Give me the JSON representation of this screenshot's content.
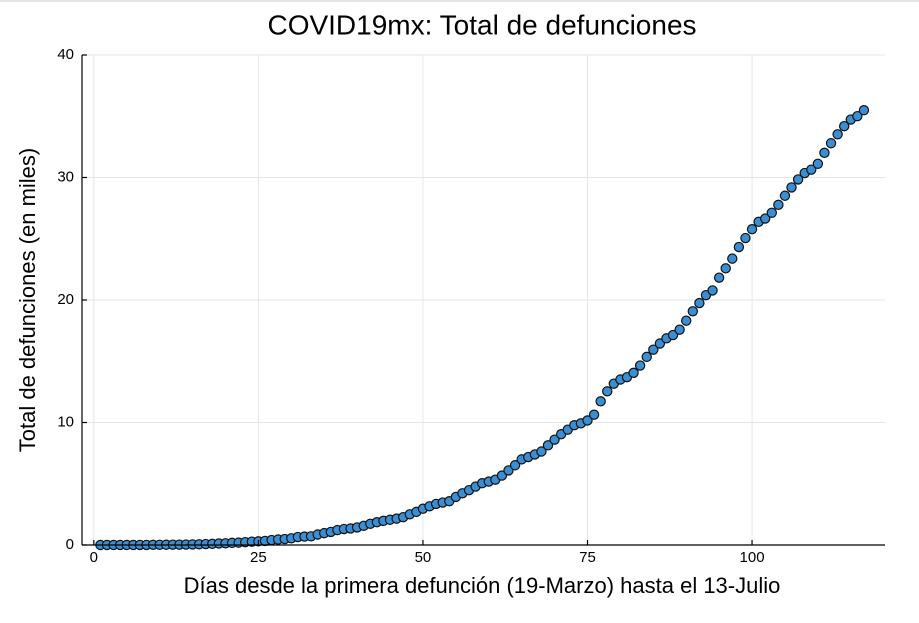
{
  "chart_data": {
    "type": "scatter",
    "title": "COVID19mx: Total de defunciones",
    "x_label": "Días desde la primera defunción (19-Marzo) hasta el 13-Julio",
    "y_label": "Total de defunciones (en miles)",
    "x": [
      1,
      2,
      3,
      4,
      5,
      6,
      7,
      8,
      9,
      10,
      11,
      12,
      13,
      14,
      15,
      16,
      17,
      18,
      19,
      20,
      21,
      22,
      23,
      24,
      25,
      26,
      27,
      28,
      29,
      30,
      31,
      32,
      33,
      34,
      35,
      36,
      37,
      38,
      39,
      40,
      41,
      42,
      43,
      44,
      45,
      46,
      47,
      48,
      49,
      50,
      51,
      52,
      53,
      54,
      55,
      56,
      57,
      58,
      59,
      60,
      61,
      62,
      63,
      64,
      65,
      66,
      67,
      68,
      69,
      70,
      71,
      72,
      73,
      74,
      75,
      76,
      77,
      78,
      79,
      80,
      81,
      82,
      83,
      84,
      85,
      86,
      87,
      88,
      89,
      90,
      91,
      92,
      93,
      94,
      95,
      96,
      97,
      98,
      99,
      100,
      101,
      102,
      103,
      104,
      105,
      106,
      107,
      108,
      109,
      110,
      111,
      112,
      113,
      114,
      115,
      116,
      117
    ],
    "values": [
      0.001,
      0.002,
      0.002,
      0.002,
      0.004,
      0.005,
      0.006,
      0.008,
      0.012,
      0.016,
      0.02,
      0.028,
      0.029,
      0.037,
      0.05,
      0.06,
      0.079,
      0.094,
      0.125,
      0.141,
      0.174,
      0.194,
      0.233,
      0.273,
      0.296,
      0.332,
      0.406,
      0.449,
      0.486,
      0.546,
      0.65,
      0.686,
      0.712,
      0.857,
      0.97,
      1.069,
      1.221,
      1.305,
      1.351,
      1.434,
      1.569,
      1.732,
      1.859,
      1.972,
      2.061,
      2.154,
      2.271,
      2.507,
      2.704,
      2.961,
      3.16,
      3.353,
      3.465,
      3.573,
      3.926,
      4.22,
      4.477,
      4.767,
      5.045,
      5.177,
      5.332,
      5.666,
      6.09,
      6.51,
      6.989,
      7.179,
      7.394,
      7.633,
      8.134,
      8.597,
      9.044,
      9.415,
      9.779,
      9.93,
      10.167,
      10.637,
      11.729,
      12.545,
      13.17,
      13.511,
      13.699,
      14.053,
      14.649,
      15.357,
      15.944,
      16.448,
      16.872,
      17.141,
      17.58,
      18.31,
      19.08,
      19.747,
      20.394,
      20.781,
      21.825,
      22.584,
      23.377,
      24.324,
      25.06,
      25.779,
      26.381,
      26.648,
      27.121,
      27.769,
      28.51,
      29.189,
      29.843,
      30.366,
      30.639,
      31.119,
      32.014,
      32.796,
      33.526,
      34.191,
      34.73,
      35.006,
      35.491
    ],
    "color": "#3a8fd4",
    "xlim": [
      -1.8,
      120.2
    ],
    "xticks": [
      0,
      25,
      50,
      75,
      100
    ],
    "ylim": [
      0,
      40
    ],
    "yticks": [
      0,
      10,
      20,
      30,
      40
    ],
    "grid": true
  }
}
